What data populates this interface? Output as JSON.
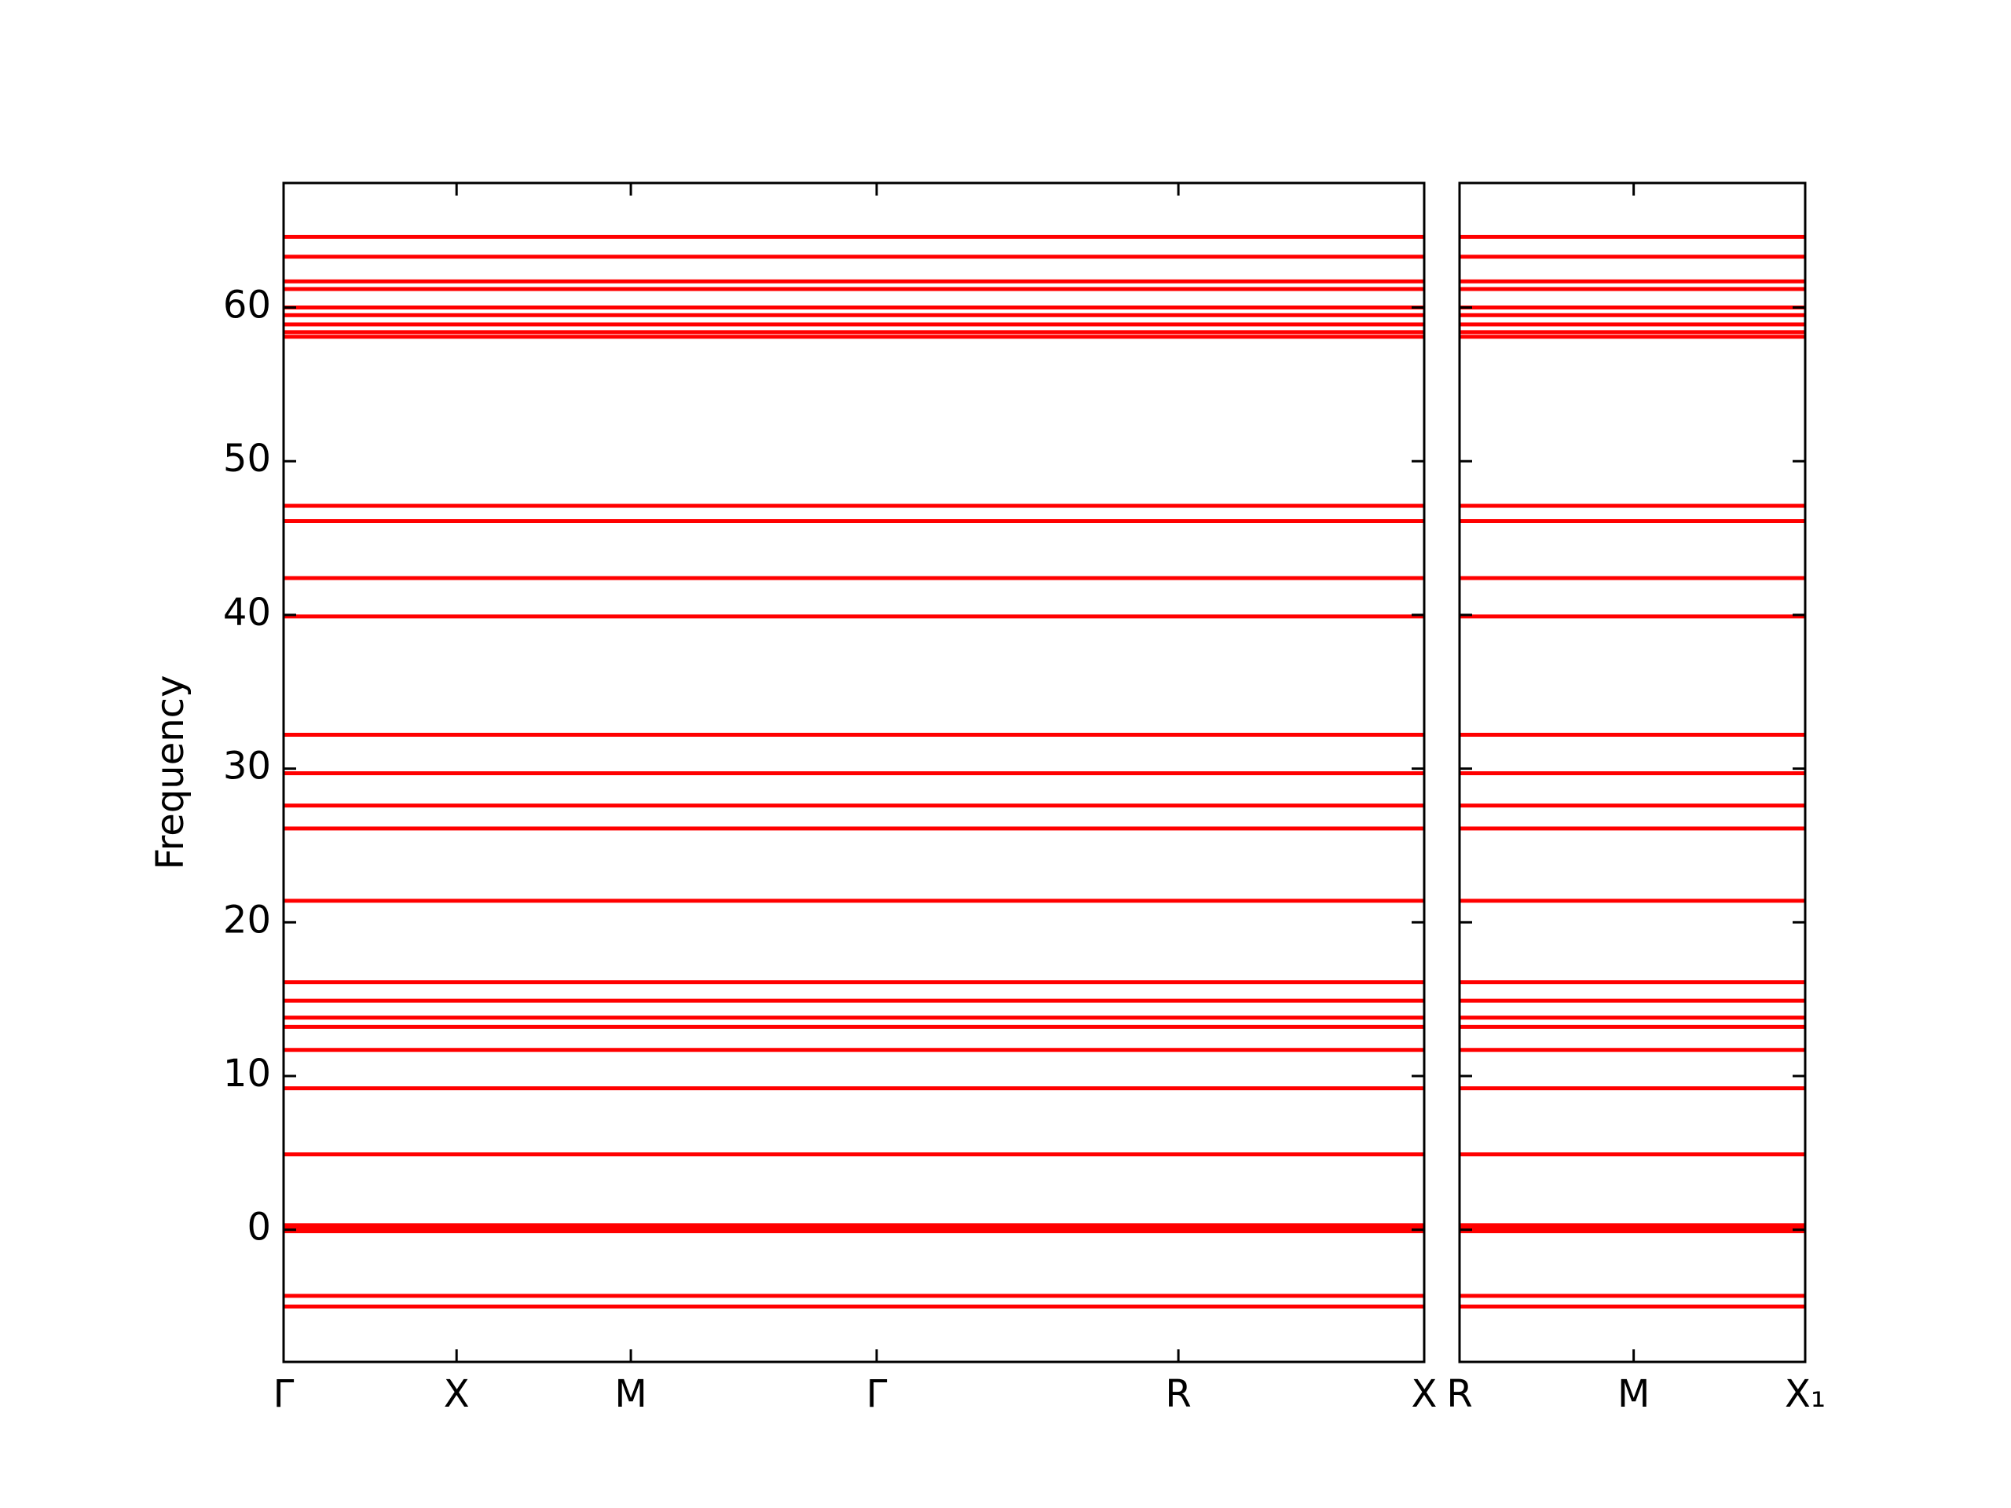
{
  "chart_data": [
    {
      "type": "line",
      "ylabel": "Frequency",
      "color": "#ff0000",
      "show_ytick_labels": true,
      "xlim": [
        0,
        877
      ],
      "xticks": [
        {
          "value": 0,
          "label": "Γ"
        },
        {
          "value": 133,
          "label": "X"
        },
        {
          "value": 267,
          "label": "M"
        },
        {
          "value": 456,
          "label": "Γ"
        },
        {
          "value": 688,
          "label": "R"
        },
        {
          "value": 877,
          "label": "X"
        }
      ],
      "ylim": [
        -8.6,
        68.1
      ],
      "yticks": [
        0,
        10,
        20,
        30,
        40,
        50,
        60
      ],
      "bands": [
        64.6,
        63.3,
        61.7,
        61.2,
        60.0,
        59.5,
        58.9,
        58.4,
        58.1,
        47.1,
        46.1,
        42.4,
        39.9,
        32.2,
        29.7,
        27.6,
        26.1,
        21.4,
        16.1,
        14.9,
        13.8,
        13.2,
        11.7,
        9.2,
        4.9,
        0.3,
        0.1,
        -0.1,
        -4.3,
        -5.0
      ]
    },
    {
      "type": "line",
      "color": "#ff0000",
      "show_ytick_labels": false,
      "xlim": [
        0,
        266
      ],
      "xticks": [
        {
          "value": 0,
          "label": "R"
        },
        {
          "value": 134,
          "label": "M"
        },
        {
          "value": 266,
          "label": "X₁"
        }
      ],
      "ylim": [
        -8.6,
        68.1
      ],
      "yticks": [
        0,
        10,
        20,
        30,
        40,
        50,
        60
      ],
      "bands": [
        64.6,
        63.3,
        61.7,
        61.2,
        60.0,
        59.5,
        58.9,
        58.4,
        58.1,
        47.1,
        46.1,
        42.4,
        39.9,
        32.2,
        29.7,
        27.6,
        26.1,
        21.4,
        16.1,
        14.9,
        13.8,
        13.2,
        11.7,
        9.2,
        4.9,
        0.3,
        0.1,
        -0.1,
        -4.3,
        -5.0
      ]
    }
  ]
}
